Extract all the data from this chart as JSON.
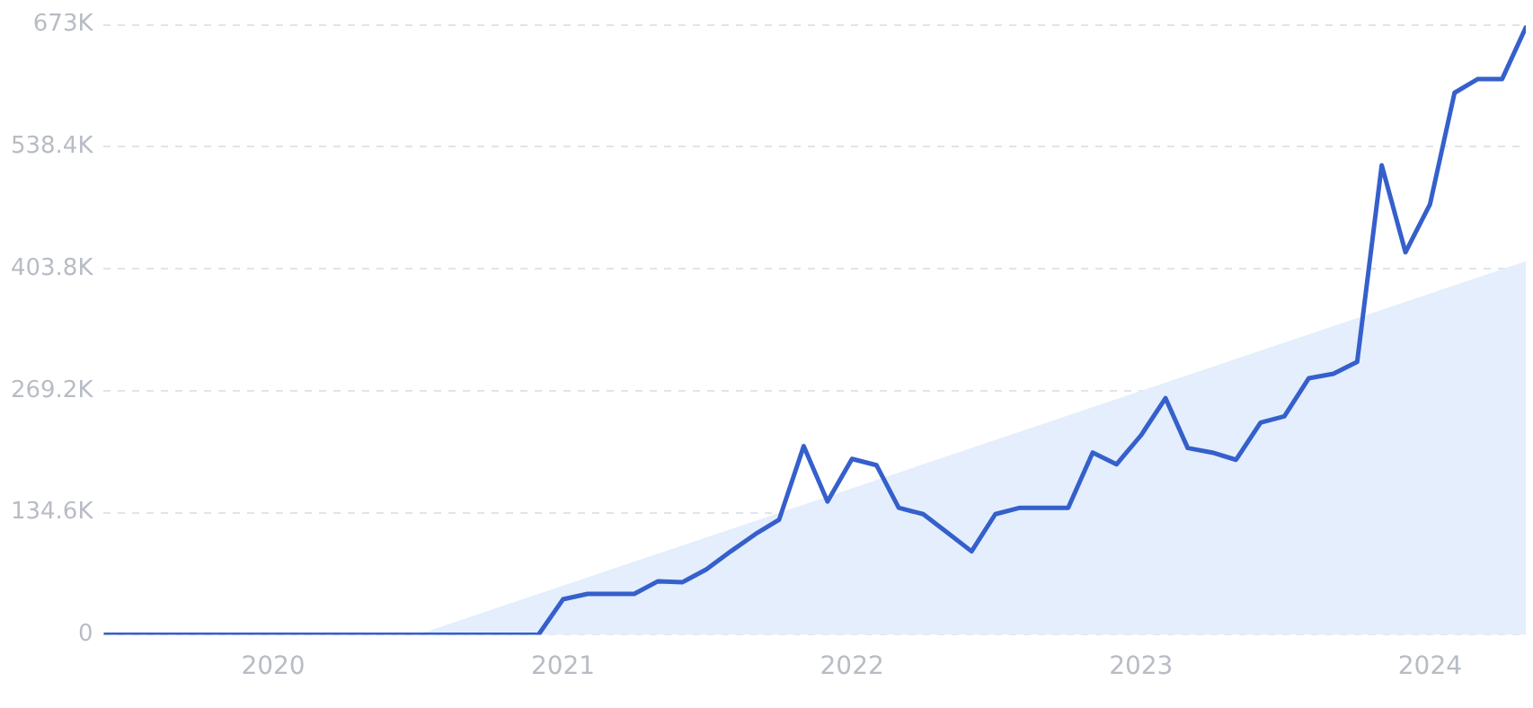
{
  "chart_data": {
    "type": "line",
    "xlim": [
      "2019-06",
      "2024-05"
    ],
    "xticks": [
      "2020",
      "2021",
      "2022",
      "2023",
      "2024"
    ],
    "ylim": [
      0,
      673000
    ],
    "yticks": [
      0,
      {
        "value": 134600,
        "label": "134.6K"
      },
      {
        "value": 269200,
        "label": "269.2K"
      },
      {
        "value": 403800,
        "label": "403.8K"
      },
      {
        "value": 538400,
        "label": "538.4K"
      },
      {
        "value": 673000,
        "label": "673K"
      }
    ],
    "grid": "y",
    "legend": false,
    "marker": "none",
    "line_style": "solid",
    "series": [
      {
        "type": "area",
        "color": "#e4eefc",
        "x": [
          "2020-07",
          "2024-05"
        ],
        "values": [
          0,
          412000
        ]
      },
      {
        "color": "#3560cc",
        "x": [
          "2019-06",
          "2019-07",
          "2019-08",
          "2019-09",
          "2019-10",
          "2019-11",
          "2019-12",
          "2020-01",
          "2020-02",
          "2020-03",
          "2020-04",
          "2020-05",
          "2020-06",
          "2020-07",
          "2020-08",
          "2020-09",
          "2020-10",
          "2020-11",
          "2020-12",
          "2021-01",
          "2021-02",
          "2021-03",
          "2021-04",
          "2021-05",
          "2021-06",
          "2021-07",
          "2021-08",
          "2021-09",
          "2021-10",
          "2021-11",
          "2021-12",
          "2022-01",
          "2022-02",
          "2022-03",
          "2022-04",
          "2022-05",
          "2022-06",
          "2022-07",
          "2022-08",
          "2022-09",
          "2022-10",
          "2022-11",
          "2022-12",
          "2023-01",
          "2023-02",
          "2023-03",
          "2023-04",
          "2023-05",
          "2023-06",
          "2023-07",
          "2023-08",
          "2023-09",
          "2023-10",
          "2023-11",
          "2023-12",
          "2024-01",
          "2024-02",
          "2024-03",
          "2024-04",
          "2024-05"
        ],
        "values": [
          0,
          0,
          0,
          0,
          0,
          0,
          0,
          0,
          0,
          0,
          0,
          0,
          0,
          0,
          0,
          0,
          0,
          0,
          0,
          39000,
          45000,
          45000,
          45000,
          59000,
          58000,
          72000,
          92000,
          111000,
          127000,
          208000,
          147000,
          194000,
          187000,
          140000,
          133000,
          113000,
          92000,
          133000,
          140000,
          140000,
          140000,
          201000,
          188000,
          220000,
          261000,
          206000,
          201000,
          193000,
          234000,
          241000,
          283000,
          288000,
          301000,
          518000,
          422000,
          475000,
          598000,
          613000,
          613000,
          670000
        ]
      }
    ]
  }
}
